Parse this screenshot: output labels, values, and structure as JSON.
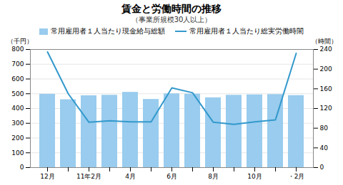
{
  "chart_data": {
    "type": "bar",
    "title": "賃金と労働時間の推移",
    "subtitle": "（事業所規模30人以上）",
    "ylabel": "（千円）",
    "y2label": "（時間）",
    "categories": [
      "12月",
      null,
      "11年2月",
      null,
      "4月",
      null,
      "6月",
      null,
      "8月",
      null,
      "10月",
      null,
      "・2月"
    ],
    "series": [
      {
        "name": "常用雇用者１人当たり現金給与総額",
        "type": "bar",
        "color": "#99ccee",
        "values": [
          497,
          460,
          487,
          490,
          510,
          462,
          500,
          498,
          473,
          490,
          493,
          495,
          488
        ]
      },
      {
        "name": "常用雇用者１人当たり総実労働時間",
        "type": "line",
        "color": "#3399cc",
        "axis": "y2",
        "values": [
          235,
          150,
          92,
          95,
          93,
          93,
          162,
          152,
          92,
          88,
          93,
          97,
          232
        ]
      }
    ],
    "ylim": [
      0,
      800
    ],
    "yticks": [
      0,
      100,
      200,
      300,
      400,
      500,
      600,
      700,
      800
    ],
    "y2lim": [
      0,
      240
    ],
    "y2ticks": [
      0,
      40,
      80,
      120,
      160,
      200,
      240
    ],
    "grid": true,
    "legend": "top"
  }
}
